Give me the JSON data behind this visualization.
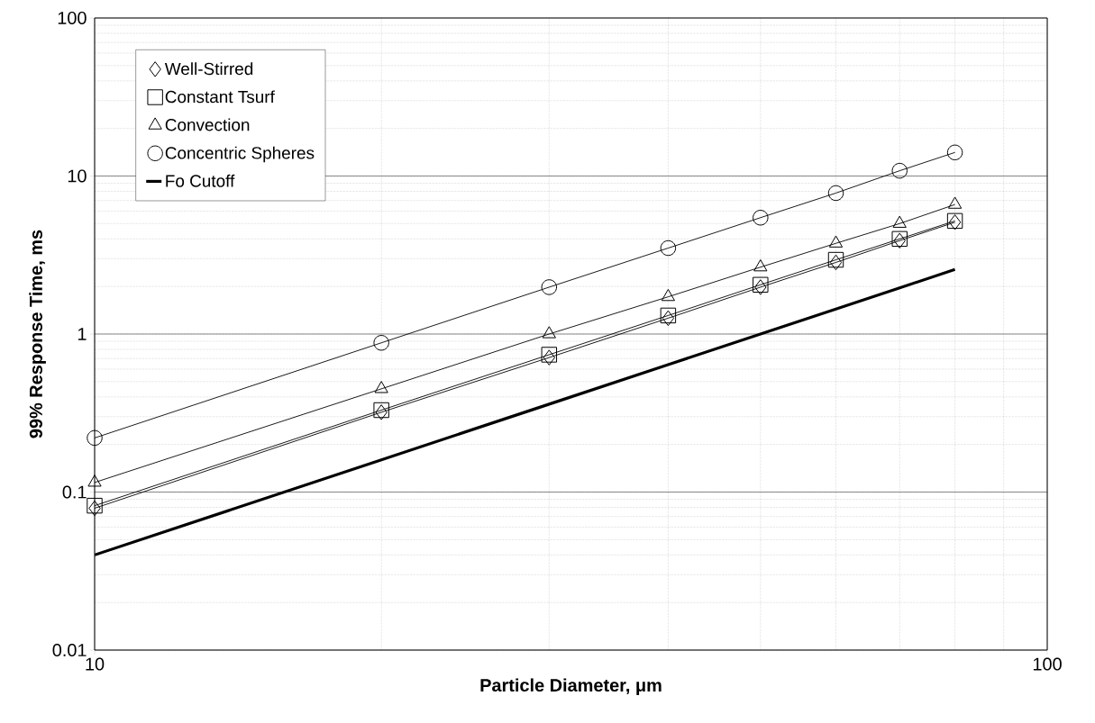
{
  "chart_data": {
    "type": "line",
    "xlabel": "Particle Diameter, μm",
    "ylabel": "99% Response Time, ms",
    "x": [
      10,
      20,
      30,
      40,
      50,
      60,
      70,
      80
    ],
    "series": [
      {
        "name": "Well-Stirred",
        "color": "#000000",
        "marker": "diamond",
        "values": [
          0.079,
          0.32,
          0.71,
          1.26,
          1.98,
          2.84,
          3.9,
          5.1
        ]
      },
      {
        "name": "Constant Tsurf",
        "color": "#000000",
        "marker": "square",
        "values": [
          0.082,
          0.33,
          0.74,
          1.31,
          2.05,
          2.95,
          4.0,
          5.2
        ]
      },
      {
        "name": "Convection",
        "color": "#000000",
        "marker": "triangle",
        "values": [
          0.115,
          0.45,
          1.0,
          1.72,
          2.65,
          3.75,
          5.0,
          6.6
        ]
      },
      {
        "name": "Concentric Spheres",
        "color": "#000000",
        "marker": "circle",
        "values": [
          0.22,
          0.88,
          1.98,
          3.5,
          5.45,
          7.8,
          10.8,
          14.1
        ]
      },
      {
        "name": "Fo Cutoff",
        "color": "#000000",
        "marker": "none",
        "values": [
          0.04,
          0.16,
          0.36,
          0.64,
          1.0,
          1.44,
          1.96,
          2.56
        ]
      }
    ],
    "log": "xy",
    "xlim": [
      10,
      100
    ],
    "ylim": [
      0.01,
      100
    ],
    "xticks": [
      10,
      100
    ],
    "yticks": [
      0.01,
      0.1,
      1,
      10,
      100
    ],
    "grid": true,
    "legend": "top left",
    "line_style": "solid"
  }
}
